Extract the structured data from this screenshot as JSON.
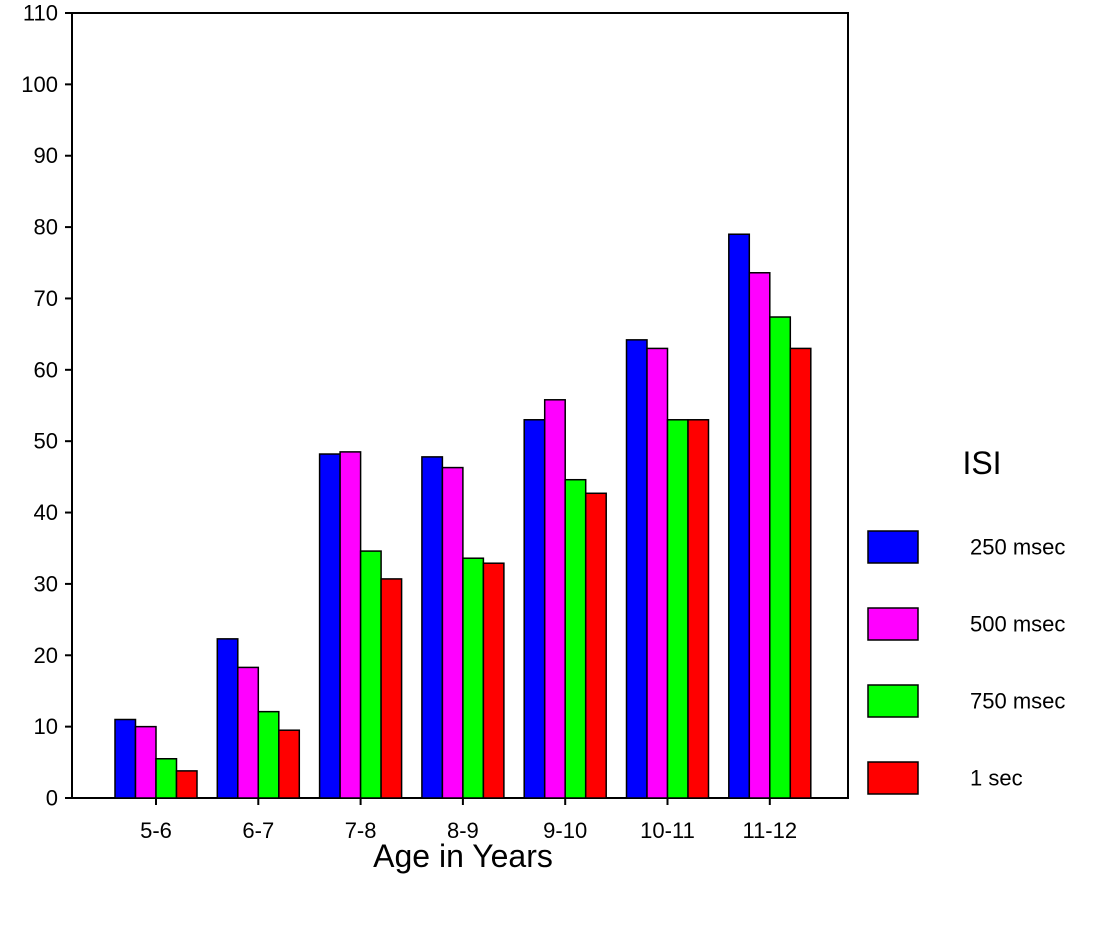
{
  "chart_data": {
    "type": "bar",
    "title": "",
    "xlabel": "Age in Years",
    "ylabel": "",
    "ylim": [
      0,
      110
    ],
    "yticks": [
      0,
      10,
      20,
      30,
      40,
      50,
      60,
      70,
      80,
      90,
      100,
      110
    ],
    "grid": false,
    "legend_position": "right",
    "legend_title": "ISI",
    "categories": [
      "5-6",
      "6-7",
      "7-8",
      "8-9",
      "9-10",
      "10-11",
      "11-12"
    ],
    "series": [
      {
        "name": "250 msec",
        "color": "#0000FF",
        "values": [
          11,
          22.3,
          48.2,
          47.8,
          53,
          64.2,
          79
        ]
      },
      {
        "name": "500 msec",
        "color": "#FF00FF",
        "values": [
          10,
          18.3,
          48.5,
          46.3,
          55.8,
          63,
          73.6
        ]
      },
      {
        "name": "750 msec",
        "color": "#00FF00",
        "values": [
          5.5,
          12.1,
          34.6,
          33.6,
          44.6,
          53,
          67.4
        ]
      },
      {
        "name": "1 sec",
        "color": "#FF0000",
        "values": [
          3.8,
          9.5,
          30.7,
          32.9,
          42.7,
          53,
          63
        ]
      }
    ]
  }
}
